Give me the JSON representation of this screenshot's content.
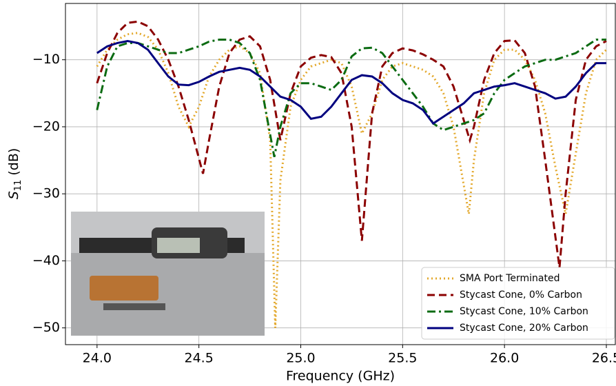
{
  "chart_data": {
    "type": "line",
    "x_label": "Frequency (GHz)",
    "y_label": {
      "symbol": "S",
      "subscript": "11",
      "unit": "(dB)"
    },
    "xlim": [
      23.845,
      26.544
    ],
    "ylim": [
      -52.5,
      -1.6
    ],
    "xticks": [
      {
        "value": 24.0,
        "label": "24.0"
      },
      24.5,
      {
        "value": 25.0,
        "label": "25.0"
      },
      25.5,
      {
        "value": 26.0,
        "label": "26.0"
      },
      26.5
    ],
    "yticks": [
      {
        "value": -10,
        "label": "−10"
      },
      {
        "value": -20,
        "label": "−20"
      },
      {
        "value": -30,
        "label": "−30"
      },
      {
        "value": -40,
        "label": "−40"
      },
      {
        "value": -50,
        "label": "−50"
      }
    ],
    "grid": true,
    "legend": "lower right",
    "series": [
      {
        "name": "SMA Port Terminated",
        "color": "#e3a82b",
        "style": "dotted",
        "x": [
          24.0,
          24.05,
          24.1,
          24.15,
          24.2,
          24.25,
          24.3,
          24.35,
          24.4,
          24.45,
          24.5,
          24.55,
          24.6,
          24.65,
          24.7,
          24.75,
          24.8,
          24.85,
          24.875,
          24.9,
          24.95,
          25.0,
          25.05,
          25.1,
          25.15,
          25.2,
          25.25,
          25.3,
          25.35,
          25.4,
          25.45,
          25.5,
          25.55,
          25.6,
          25.65,
          25.7,
          25.75,
          25.825,
          25.85,
          25.9,
          25.95,
          26.0,
          26.05,
          26.1,
          26.15,
          26.2,
          26.25,
          26.3,
          26.35,
          26.4,
          26.45,
          26.5
        ],
        "values": [
          -11,
          -8.5,
          -7,
          -6.2,
          -6,
          -6.6,
          -8.5,
          -12,
          -17,
          -20,
          -17,
          -12.5,
          -10,
          -8.5,
          -8,
          -9,
          -12,
          -22,
          -50,
          -28,
          -17,
          -13,
          -11,
          -10.5,
          -10,
          -10.5,
          -14,
          -21,
          -18,
          -13,
          -11,
          -10.5,
          -11,
          -11.5,
          -12.5,
          -15,
          -20,
          -33,
          -25,
          -15,
          -10,
          -8.5,
          -8.5,
          -10,
          -13,
          -18,
          -26,
          -33,
          -24,
          -15,
          -10,
          -8.5
        ]
      },
      {
        "name": "Stycast Cone, 0% Carbon",
        "color": "#8b0000",
        "style": "dashed",
        "x": [
          24.0,
          24.05,
          24.1,
          24.15,
          24.2,
          24.25,
          24.3,
          24.35,
          24.4,
          24.45,
          24.52,
          24.55,
          24.6,
          24.65,
          24.7,
          24.75,
          24.8,
          24.85,
          24.9,
          24.95,
          25.0,
          25.05,
          25.1,
          25.15,
          25.2,
          25.25,
          25.3,
          25.35,
          25.4,
          25.45,
          25.5,
          25.55,
          25.6,
          25.65,
          25.7,
          25.75,
          25.83,
          25.85,
          25.9,
          25.95,
          26.0,
          26.05,
          26.1,
          26.15,
          26.2,
          26.27,
          26.3,
          26.35,
          26.4,
          26.45,
          26.5
        ],
        "values": [
          -13.5,
          -9,
          -6,
          -4.5,
          -4.3,
          -5,
          -7,
          -10,
          -14,
          -19,
          -27,
          -22,
          -14,
          -9,
          -7,
          -6.5,
          -8,
          -13,
          -22,
          -15,
          -11,
          -9.7,
          -9.3,
          -9.6,
          -12,
          -20,
          -37,
          -18,
          -11,
          -9,
          -8.3,
          -8.6,
          -9.2,
          -10,
          -11,
          -14,
          -22,
          -20,
          -13,
          -9,
          -7.2,
          -7.1,
          -9,
          -14,
          -25,
          -41,
          -30,
          -16,
          -10,
          -8,
          -7.2
        ]
      },
      {
        "name": "Stycast Cone, 10% Carbon",
        "color": "#0b6b12",
        "style": "dashdot",
        "x": [
          24.0,
          24.05,
          24.1,
          24.15,
          24.2,
          24.25,
          24.3,
          24.35,
          24.4,
          24.45,
          24.5,
          24.55,
          24.6,
          24.65,
          24.7,
          24.75,
          24.8,
          24.87,
          24.9,
          24.95,
          25.0,
          25.05,
          25.1,
          25.15,
          25.2,
          25.25,
          25.3,
          25.35,
          25.4,
          25.45,
          25.5,
          25.55,
          25.6,
          25.65,
          25.7,
          25.75,
          25.8,
          25.85,
          25.9,
          25.95,
          26.0,
          26.05,
          26.1,
          26.15,
          26.2,
          26.25,
          26.3,
          26.35,
          26.4,
          26.45,
          26.5
        ],
        "values": [
          -17.5,
          -11,
          -8,
          -7.5,
          -7.5,
          -8,
          -8.5,
          -9,
          -9,
          -8.5,
          -8,
          -7.3,
          -7,
          -7,
          -7.5,
          -9,
          -13,
          -24.5,
          -20,
          -15,
          -13.5,
          -13.5,
          -14,
          -14.5,
          -13,
          -9.5,
          -8.3,
          -8.2,
          -9,
          -11,
          -13,
          -15,
          -17,
          -19.5,
          -20.5,
          -20,
          -19.5,
          -19,
          -18,
          -15,
          -13,
          -12,
          -11,
          -10.5,
          -10,
          -10,
          -9.5,
          -9,
          -8,
          -7,
          -7
        ]
      },
      {
        "name": "Stycast Cone, 20% Carbon",
        "color": "#00007f",
        "style": "solid",
        "x": [
          24.0,
          24.05,
          24.1,
          24.15,
          24.2,
          24.25,
          24.3,
          24.35,
          24.4,
          24.45,
          24.5,
          24.55,
          24.6,
          24.65,
          24.7,
          24.75,
          24.8,
          24.85,
          24.9,
          24.95,
          25.0,
          25.05,
          25.1,
          25.15,
          25.2,
          25.25,
          25.3,
          25.35,
          25.4,
          25.45,
          25.5,
          25.55,
          25.6,
          25.65,
          25.7,
          25.75,
          25.8,
          25.85,
          25.9,
          25.95,
          26.0,
          26.05,
          26.1,
          26.15,
          26.2,
          26.25,
          26.3,
          26.35,
          26.4,
          26.45,
          26.5
        ],
        "values": [
          -9,
          -8,
          -7.5,
          -7.2,
          -7.5,
          -8.5,
          -10.5,
          -12.5,
          -13.7,
          -13.8,
          -13.3,
          -12.5,
          -11.8,
          -11.5,
          -11.2,
          -11.5,
          -12.5,
          -14,
          -15.5,
          -16,
          -17,
          -18.8,
          -18.5,
          -17,
          -15,
          -13,
          -12.3,
          -12.5,
          -13.5,
          -15,
          -16,
          -16.5,
          -17.5,
          -19.5,
          -18.5,
          -17.5,
          -16.5,
          -15,
          -14.5,
          -14,
          -13.8,
          -13.5,
          -14,
          -14.5,
          -15,
          -15.8,
          -15.5,
          -14,
          -12,
          -10.5,
          -10.5
        ]
      }
    ]
  }
}
